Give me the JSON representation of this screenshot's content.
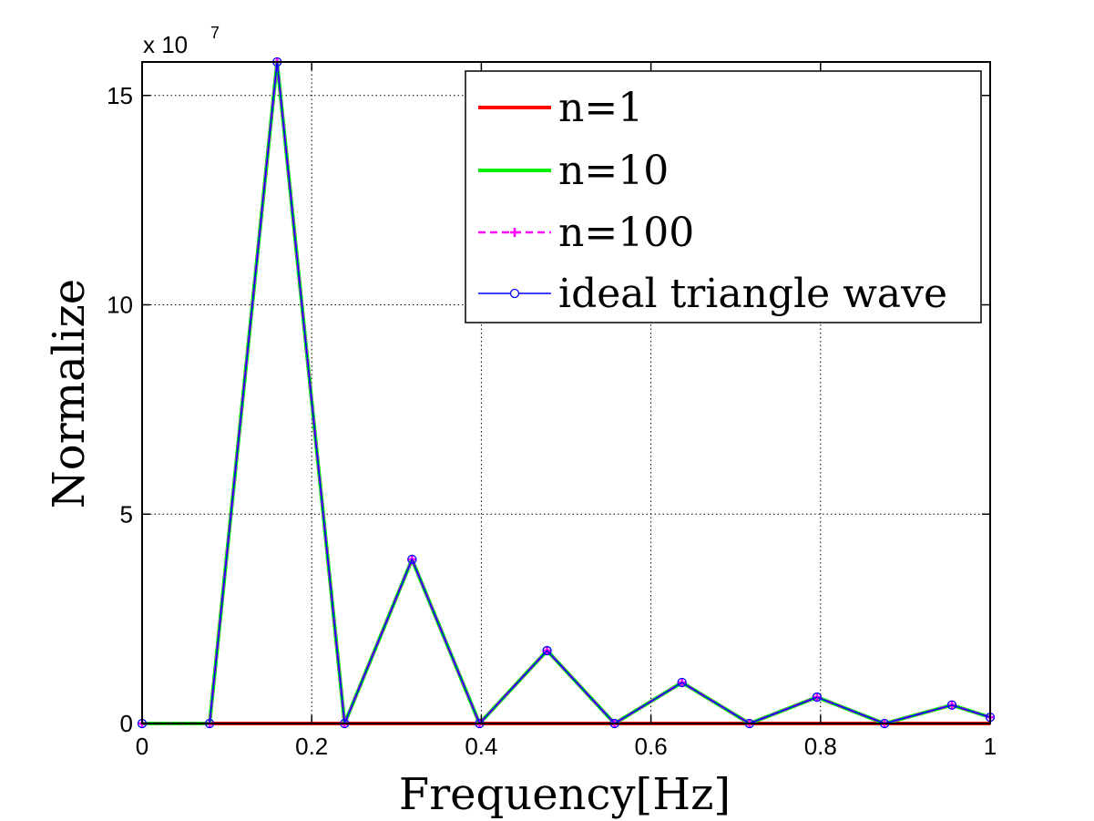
{
  "chart_data": {
    "type": "line",
    "xlabel": "Frequency[Hz]",
    "ylabel": "Normalize",
    "y_exponent_label": "x 10",
    "y_exponent_power": "7",
    "xlim": [
      0,
      1
    ],
    "ylim": [
      0,
      15.8
    ],
    "x_ticks": [
      0,
      0.2,
      0.4,
      0.6,
      0.8,
      1
    ],
    "x_tick_labels": [
      "0",
      "0.2",
      "0.4",
      "0.6",
      "0.8",
      "1"
    ],
    "y_ticks": [
      0,
      5,
      10,
      15
    ],
    "y_tick_labels": [
      "0",
      "5",
      "10",
      "15"
    ],
    "grid": true,
    "legend_position": "top-right",
    "x": [
      0,
      0.0796,
      0.1592,
      0.2388,
      0.3183,
      0.3979,
      0.4775,
      0.5571,
      0.6366,
      0.7162,
      0.7958,
      0.8754,
      0.9549,
      1.0
    ],
    "series": [
      {
        "name": "n=1",
        "color": "#ff0000",
        "style": "solid",
        "marker": "none",
        "values": [
          0,
          0,
          0,
          0,
          0,
          0,
          0,
          0,
          0,
          0,
          0,
          0,
          0,
          0
        ]
      },
      {
        "name": "n=10",
        "color": "#00ee00",
        "style": "solid",
        "marker": "none",
        "values": [
          0,
          0,
          15.8,
          0,
          3.92,
          0,
          1.74,
          0,
          0.98,
          0,
          0.63,
          0,
          0.44,
          0.15
        ]
      },
      {
        "name": "n=100",
        "color": "#ff00ff",
        "style": "dashed",
        "marker": "plus",
        "values": [
          0,
          0,
          15.8,
          0,
          3.92,
          0,
          1.74,
          0,
          0.98,
          0,
          0.63,
          0,
          0.44,
          0.15
        ]
      },
      {
        "name": "ideal triangle wave",
        "color": "#0000ff",
        "style": "solid",
        "marker": "circle",
        "values": [
          0,
          0,
          15.8,
          0,
          3.92,
          0,
          1.74,
          0,
          0.98,
          0,
          0.63,
          0,
          0.44,
          0.15
        ]
      }
    ]
  }
}
